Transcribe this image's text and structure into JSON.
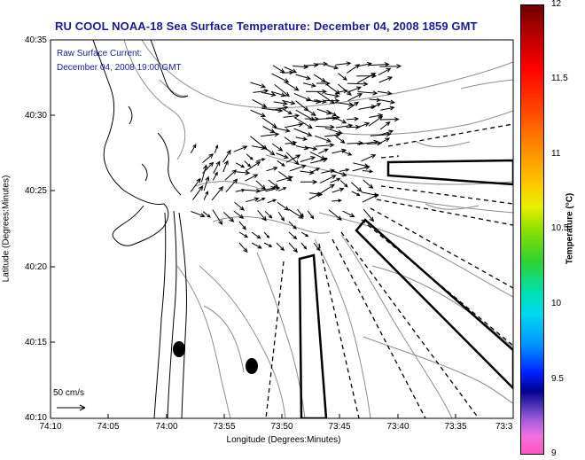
{
  "title": "RU COOL  NOAA-18  Sea Surface Temperature:  December 04, 2008 1859 GMT",
  "overlay": {
    "line1": "Raw Surface Current:",
    "line2": "December 04, 2008 19:00 GMT"
  },
  "axes": {
    "xlabel": "Longitude (Degrees:Minutes)",
    "ylabel": "Latitude (Degrees:Minutes)",
    "xticks": [
      "74:10",
      "74:05",
      "74:00",
      "73:55",
      "73:50",
      "73:45",
      "73:40",
      "73:35",
      "73:3"
    ],
    "yticks": [
      "40:35",
      "40:30",
      "40:25",
      "40:20",
      "40:15",
      "40:10"
    ]
  },
  "colorbar": {
    "label": "Temperature (°C)",
    "ticks": [
      "12",
      "11.5",
      "11",
      "10.5",
      "10",
      "9.5",
      "9"
    ]
  },
  "scale": {
    "label": "50 cm/s"
  },
  "colors": {
    "title": "#1a1a9a",
    "contour": "#8c8c8c",
    "coastline": "#000000"
  },
  "icons": [
    "current-vector-icon",
    "buoy-marker-icon"
  ]
}
